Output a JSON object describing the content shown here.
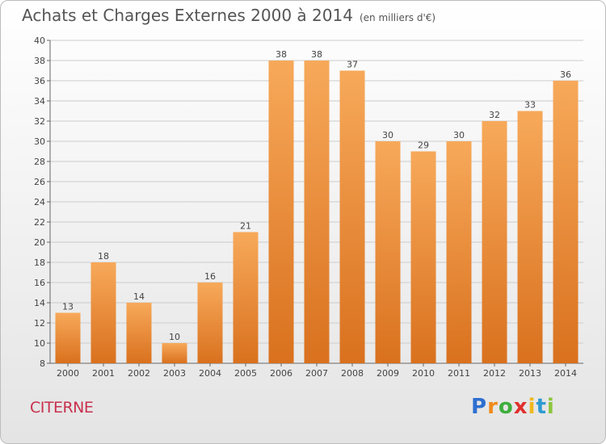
{
  "title": "Achats et Charges Externes 2000 à 2014",
  "subtitle": "(en milliers d'€)",
  "commune": "CITERNE",
  "logo": {
    "letters": [
      "P",
      "r",
      "o",
      "x",
      "i",
      "t",
      "i"
    ],
    "colors": [
      "#2e6fd0",
      "#f08a1c",
      "#3cae3c",
      "#e0302e",
      "#f0b81c",
      "#2e9bd0",
      "#8cc63e"
    ]
  },
  "colors": {
    "bar_light": "#f7a95a",
    "bar_dark": "#d9711e",
    "grid": "#cccccc",
    "axis": "#666666"
  },
  "chart_data": {
    "type": "bar",
    "title": "Achats et Charges Externes 2000 à 2014",
    "categories": [
      "2000",
      "2001",
      "2002",
      "2003",
      "2004",
      "2005",
      "2006",
      "2007",
      "2008",
      "2009",
      "2010",
      "2011",
      "2012",
      "2013",
      "2014"
    ],
    "values": [
      13,
      18,
      14,
      10,
      16,
      21,
      38,
      38,
      37,
      30,
      29,
      30,
      32,
      33,
      36
    ],
    "ylim": [
      8,
      40
    ],
    "yticks": [
      8,
      10,
      12,
      14,
      16,
      18,
      20,
      22,
      24,
      26,
      28,
      30,
      32,
      34,
      36,
      38,
      40
    ],
    "grid": true,
    "xlabel": "",
    "ylabel": ""
  }
}
